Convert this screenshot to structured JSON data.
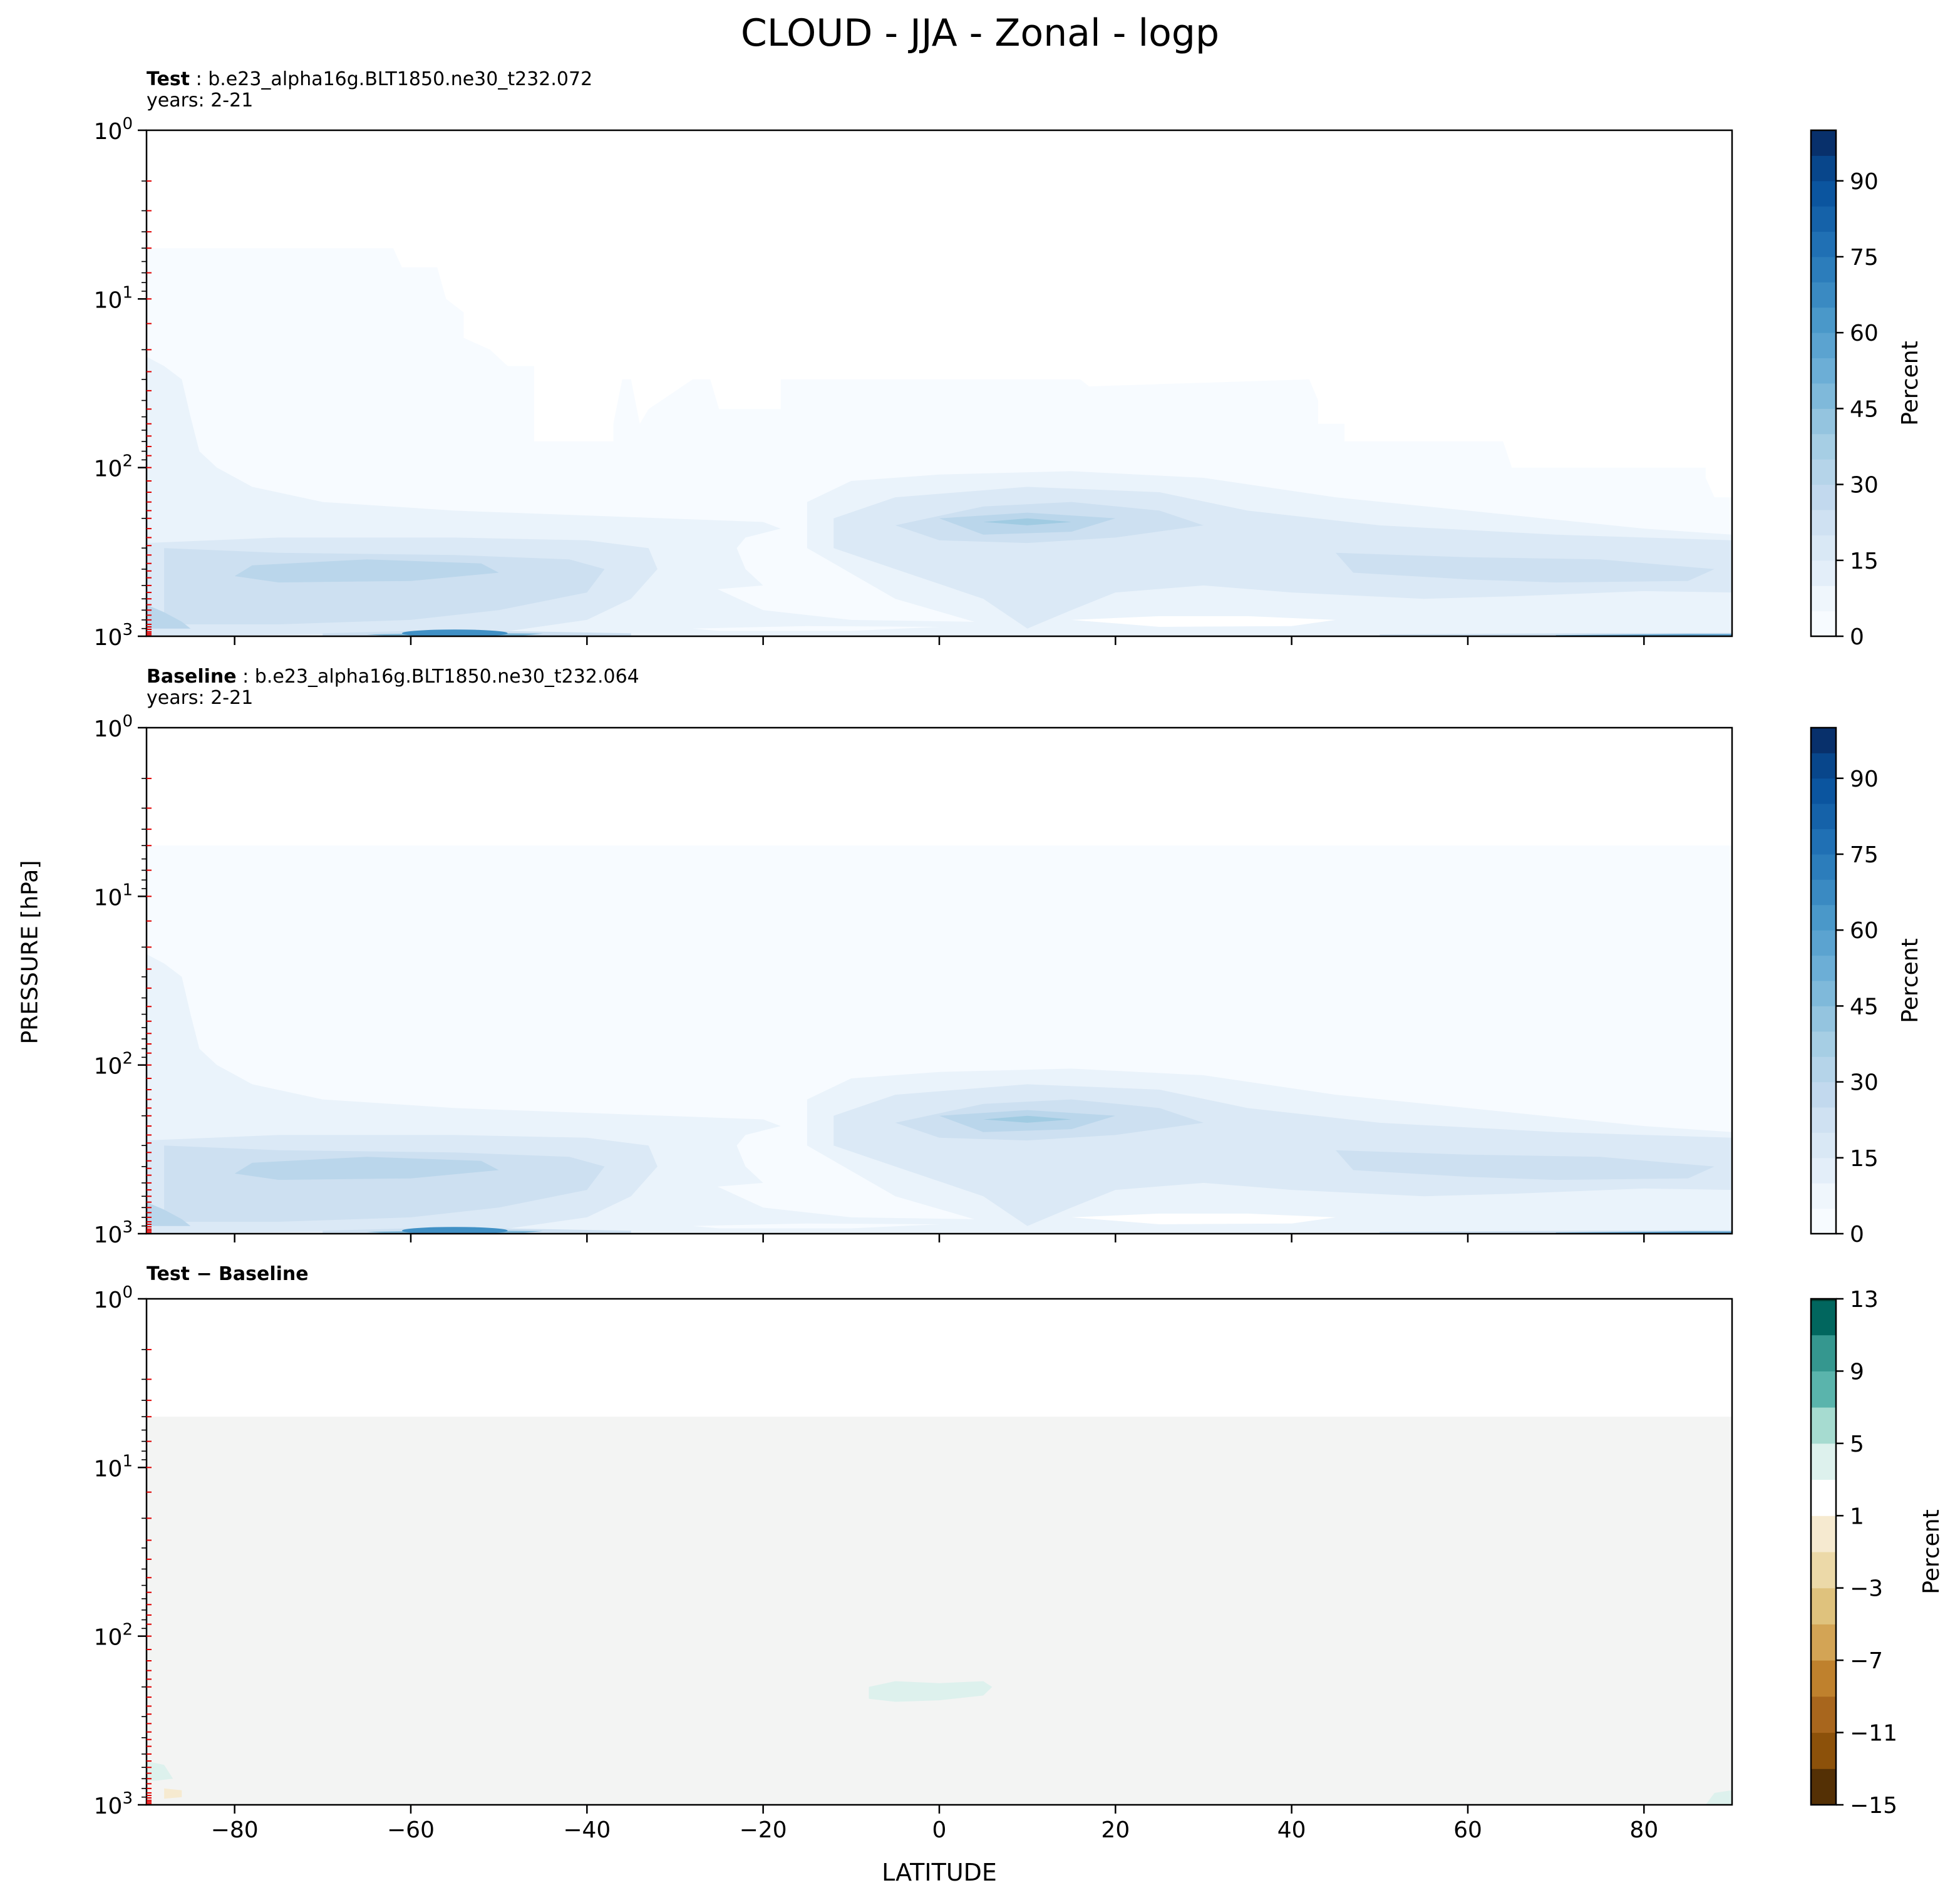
{
  "title": "CLOUD - JJA - Zonal - logp",
  "figure": {
    "ylabel": "PRESSURE [hPa]",
    "xlabel": "LATITUDE"
  },
  "panels": [
    {
      "label": "Test",
      "case": "b.e23_alpha16g.BLT1850.ne30_t232.072",
      "years": "years: 2-21",
      "colorbar_label": "Percent"
    },
    {
      "label": "Baseline",
      "case": "b.e23_alpha16g.BLT1850.ne30_t232.064",
      "years": "years: 2-21",
      "colorbar_label": "Percent"
    },
    {
      "label": "Test − Baseline",
      "case": "",
      "years": "",
      "colorbar_label": "Percent"
    }
  ],
  "colors": {
    "blues": [
      "#f7fbff",
      "#eaf3fb",
      "#dbe9f6",
      "#cde0f1",
      "#bad6eb",
      "#a0cbe2",
      "#7fb9da",
      "#5ea3d0",
      "#4090c5",
      "#2677b8",
      "#125ea6",
      "#08468b",
      "#08306b"
    ],
    "brbg": [
      "#543005",
      "#8c510a",
      "#bf812d",
      "#dfc27d",
      "#f0dfb5",
      "#f6ead0",
      "#ffffff",
      "#ddf1ed",
      "#a6dbd0",
      "#5ab4ac",
      "#35978f",
      "#01665e",
      "#003c30"
    ],
    "red_tick": "#e00000"
  },
  "chart_data": [
    {
      "type": "heatmap",
      "panel": "Test",
      "x_axis": {
        "label": "LATITUDE",
        "range": [
          -90,
          90
        ],
        "ticks": [
          -80,
          -60,
          -40,
          -20,
          0,
          20,
          40,
          60,
          80
        ],
        "tick_labels": [
          "−80",
          "−60",
          "−40",
          "−20",
          "0",
          "20",
          "40",
          "60",
          "80"
        ]
      },
      "y_axis": {
        "label": "PRESSURE [hPa]",
        "scale": "log",
        "inverted": true,
        "range": [
          1,
          1000
        ],
        "ticks": [
          1,
          10,
          100,
          1000
        ],
        "tick_labels": [
          "10^0",
          "10^1",
          "10^2",
          "10^3"
        ]
      },
      "colorbar": {
        "label": "Percent",
        "range": [
          0,
          100
        ],
        "ticks": [
          0,
          15,
          30,
          45,
          60,
          75,
          90
        ],
        "colormap": "Blues"
      },
      "features": [
        {
          "feature": "model top",
          "pressure_hPa": 5
        },
        {
          "feature": "near-surface maximum",
          "lat": -55,
          "pressure_hPa": 950,
          "value": 55
        },
        {
          "feature": "tropical upper-level maximum",
          "lat": 10,
          "pressure_hPa": 200,
          "value": 35
        },
        {
          "feature": "arctic surface maximum",
          "lat": 85,
          "pressure_hPa": 980,
          "value": 60
        }
      ]
    },
    {
      "type": "heatmap",
      "panel": "Baseline",
      "x_axis": {
        "label": "LATITUDE",
        "range": [
          -90,
          90
        ],
        "ticks": [
          -80,
          -60,
          -40,
          -20,
          0,
          20,
          40,
          60,
          80
        ],
        "tick_labels": [
          "−80",
          "−60",
          "−40",
          "−20",
          "0",
          "20",
          "40",
          "60",
          "80"
        ]
      },
      "y_axis": {
        "label": "PRESSURE [hPa]",
        "scale": "log",
        "inverted": true,
        "range": [
          1,
          1000
        ],
        "ticks": [
          1,
          10,
          100,
          1000
        ],
        "tick_labels": [
          "10^0",
          "10^1",
          "10^2",
          "10^3"
        ]
      },
      "colorbar": {
        "label": "Percent",
        "range": [
          0,
          100
        ],
        "ticks": [
          0,
          15,
          30,
          45,
          60,
          75,
          90
        ],
        "colormap": "Blues"
      },
      "features": [
        {
          "feature": "model top",
          "pressure_hPa": 5
        },
        {
          "feature": "near-surface maximum",
          "lat": -55,
          "pressure_hPa": 950,
          "value": 55
        },
        {
          "feature": "tropical upper-level maximum",
          "lat": 10,
          "pressure_hPa": 200,
          "value": 35
        },
        {
          "feature": "arctic surface maximum",
          "lat": 85,
          "pressure_hPa": 980,
          "value": 60
        }
      ]
    },
    {
      "type": "heatmap",
      "panel": "Test − Baseline",
      "x_axis": {
        "label": "LATITUDE",
        "range": [
          -90,
          90
        ],
        "ticks": [
          -80,
          -60,
          -40,
          -20,
          0,
          20,
          40,
          60,
          80
        ],
        "tick_labels": [
          "−80",
          "−60",
          "−40",
          "−20",
          "0",
          "20",
          "40",
          "60",
          "80"
        ]
      },
      "y_axis": {
        "label": "PRESSURE [hPa]",
        "scale": "log",
        "inverted": true,
        "range": [
          1,
          1000
        ],
        "ticks": [
          1,
          10,
          100,
          1000
        ],
        "tick_labels": [
          "10^0",
          "10^1",
          "10^2",
          "10^3"
        ]
      },
      "colorbar": {
        "label": "Percent",
        "range": [
          -15,
          13
        ],
        "ticks": [
          -15,
          -11,
          -7,
          -3,
          1,
          5,
          9,
          13
        ],
        "tick_labels": [
          "−15",
          "−11",
          "−7",
          "−3",
          "1",
          "5",
          "9",
          "13"
        ],
        "colormap": "BrBG"
      },
      "features": [
        {
          "feature": "positive anomaly",
          "lat_range": [
            -8,
            6
          ],
          "pressure_hPa": 220,
          "value": 2
        },
        {
          "feature": "positive anomaly",
          "lat": -88,
          "pressure_hPa": 700,
          "value": 2
        },
        {
          "feature": "positive anomaly",
          "lat": 89,
          "pressure_hPa": 900,
          "value": 2
        }
      ]
    }
  ]
}
